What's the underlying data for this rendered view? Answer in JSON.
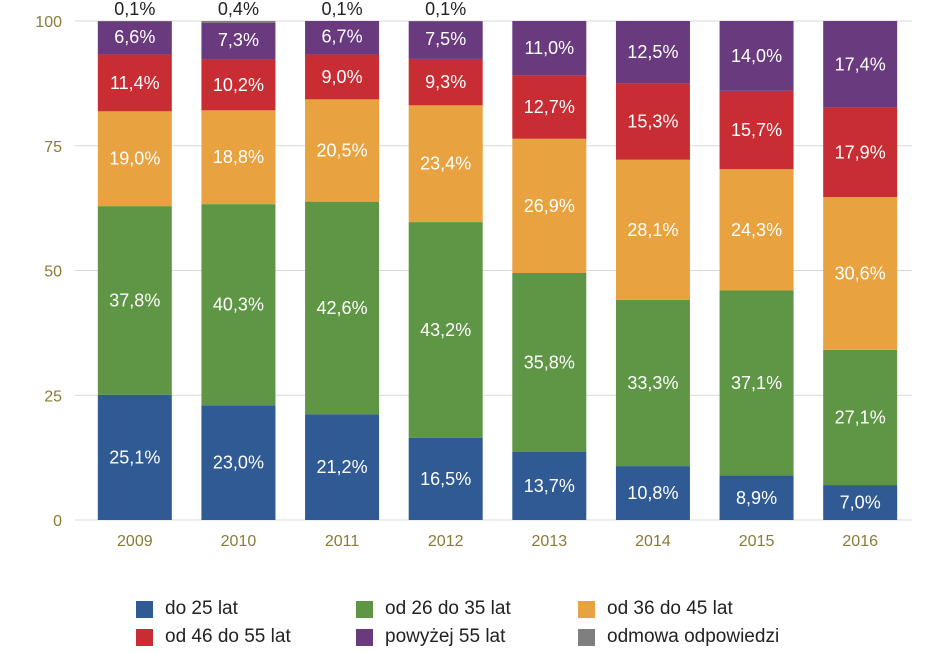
{
  "chart_data": {
    "type": "bar",
    "stacked": true,
    "categories": [
      "2009",
      "2010",
      "2011",
      "2012",
      "2013",
      "2014",
      "2015",
      "2016"
    ],
    "ylim": [
      0,
      100
    ],
    "yticks": [
      0,
      25,
      50,
      75,
      100
    ],
    "grid": true,
    "legend_position": "bottom",
    "series": [
      {
        "name": "do 25 lat",
        "color": "#2f5a93",
        "values": [
          25.1,
          23.0,
          21.2,
          16.5,
          13.7,
          10.8,
          8.9,
          7.0
        ],
        "labels": [
          "25,1%",
          "23,0%",
          "21,2%",
          "16,5%",
          "13,7%",
          "10,8%",
          "8,9%",
          "7,0%"
        ]
      },
      {
        "name": "od 26 do 35 lat",
        "color": "#5e9646",
        "values": [
          37.8,
          40.3,
          42.6,
          43.2,
          35.8,
          33.3,
          37.1,
          27.1
        ],
        "labels": [
          "37,8%",
          "40,3%",
          "42,6%",
          "43,2%",
          "35,8%",
          "33,3%",
          "37,1%",
          "27,1%"
        ]
      },
      {
        "name": "od 36 do 45 lat",
        "color": "#e8a23f",
        "values": [
          19.0,
          18.8,
          20.5,
          23.4,
          26.9,
          28.1,
          24.3,
          30.6
        ],
        "labels": [
          "19,0%",
          "18,8%",
          "20,5%",
          "23,4%",
          "26,9%",
          "28,1%",
          "24,3%",
          "30,6%"
        ]
      },
      {
        "name": "od 46 do 55 lat",
        "color": "#c72d32",
        "values": [
          11.4,
          10.2,
          9.0,
          9.3,
          12.7,
          15.3,
          15.7,
          17.9
        ],
        "labels": [
          "11,4%",
          "10,2%",
          "9,0%",
          "9,3%",
          "12,7%",
          "15,3%",
          "15,7%",
          "17,9%"
        ]
      },
      {
        "name": "powyżej 55 lat",
        "color": "#6a3a7e",
        "values": [
          6.6,
          7.3,
          6.7,
          7.5,
          11.0,
          12.5,
          14.0,
          17.4
        ],
        "labels": [
          "6,6%",
          "7,3%",
          "6,7%",
          "7,5%",
          "11,0%",
          "12,5%",
          "14,0%",
          "17,4%"
        ]
      },
      {
        "name": "odmowa odpowiedzi",
        "color": "#7f7f7f",
        "values": [
          0.1,
          0.4,
          0.1,
          0.1,
          null,
          null,
          null,
          null
        ],
        "labels": [
          "0,1%",
          "0,4%",
          "0,1%",
          "0,1%",
          null,
          null,
          null,
          null
        ]
      }
    ]
  }
}
